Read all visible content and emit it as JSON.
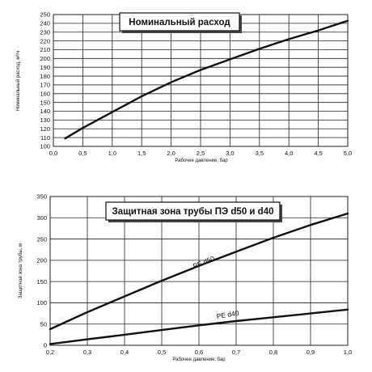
{
  "chart_data": [
    {
      "type": "line",
      "title": "Номинальный расход",
      "xlabel": "Рабочее давление, бар",
      "ylabel": "Номинальный расход, м³/ч",
      "xlim": [
        0.0,
        5.0
      ],
      "ylim": [
        100,
        250
      ],
      "x_ticks": [
        0.0,
        0.5,
        1.0,
        1.5,
        2.0,
        2.5,
        3.0,
        3.5,
        4.0,
        4.5,
        5.0
      ],
      "x_tick_labels": [
        "0,0",
        "0,5",
        "1,0",
        "1,5",
        "2,0",
        "2,5",
        "3,0",
        "3,5",
        "4,0",
        "4,5",
        "5,0"
      ],
      "y_ticks": [
        100,
        110,
        120,
        130,
        140,
        150,
        160,
        170,
        180,
        190,
        200,
        210,
        220,
        230,
        240,
        250
      ],
      "y_tick_labels": [
        "100",
        "110",
        "120",
        "130",
        "140",
        "150",
        "160",
        "170",
        "180",
        "190",
        "200",
        "210",
        "220",
        "230",
        "240",
        "250"
      ],
      "grid": true,
      "series": [
        {
          "name": "",
          "x": [
            0.2,
            0.5,
            1.0,
            1.5,
            2.0,
            2.5,
            3.0,
            3.5,
            4.0,
            4.5,
            5.0
          ],
          "y": [
            109,
            121,
            139,
            157,
            173,
            187,
            199,
            211,
            222,
            232,
            243
          ]
        }
      ]
    },
    {
      "type": "line",
      "title": "Защитная зона трубы ПЭ d50 и d40",
      "xlabel": "Рабочее давление, бар",
      "ylabel": "Защитная зона трубы, м",
      "xlim": [
        0.2,
        1.0
      ],
      "ylim": [
        0,
        350
      ],
      "x_ticks": [
        0.2,
        0.3,
        0.4,
        0.5,
        0.6,
        0.7,
        0.8,
        0.9,
        1.0
      ],
      "x_tick_labels": [
        "0,2",
        "0,3",
        "0,4",
        "0,5",
        "0,6",
        "0,7",
        "0,8",
        "0,9",
        "1,0"
      ],
      "y_ticks": [
        0,
        50,
        100,
        150,
        200,
        250,
        300,
        350
      ],
      "y_tick_labels": [
        "0",
        "50",
        "100",
        "150",
        "200",
        "250",
        "300",
        "350"
      ],
      "grid": true,
      "series": [
        {
          "name": "PE d50",
          "x": [
            0.2,
            0.3,
            0.4,
            0.5,
            0.6,
            0.7,
            0.8,
            0.9,
            1.0
          ],
          "y": [
            38,
            78,
            115,
            152,
            187,
            220,
            253,
            283,
            310
          ]
        },
        {
          "name": "PE d40",
          "x": [
            0.2,
            0.3,
            0.4,
            0.5,
            0.6,
            0.7,
            0.8,
            0.9,
            1.0
          ],
          "y": [
            3,
            14,
            25,
            36,
            47,
            57,
            66,
            75,
            84
          ]
        }
      ]
    }
  ]
}
